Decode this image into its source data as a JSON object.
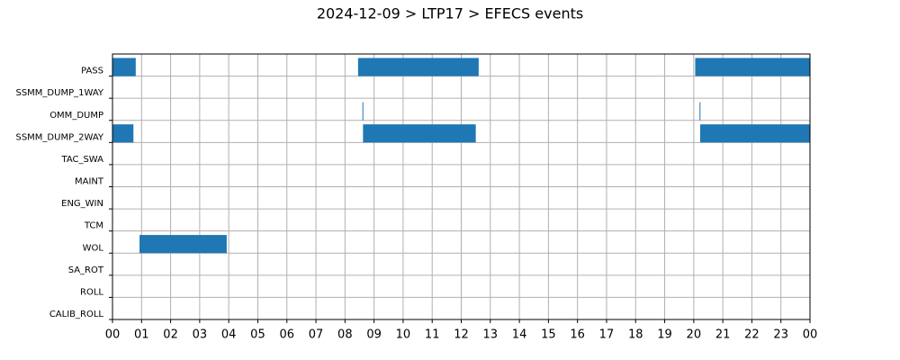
{
  "chart_data": {
    "type": "timeline",
    "title": "2024-12-09 > LTP17 > EFECS events",
    "categories": [
      "PASS",
      "SSMM_DUMP_1WAY",
      "OMM_DUMP",
      "SSMM_DUMP_2WAY",
      "TAC_SWA",
      "MAINT",
      "ENG_WIN",
      "TCM",
      "WOL",
      "SA_ROT",
      "ROLL",
      "CALIB_ROLL"
    ],
    "events": [
      {
        "category": "PASS",
        "start": 0,
        "end": 0.8
      },
      {
        "category": "PASS",
        "start": 8.45,
        "end": 12.6
      },
      {
        "category": "PASS",
        "start": 20.05,
        "end": 24
      },
      {
        "category": "OMM_DUMP",
        "start": 8.6,
        "end": 8.63
      },
      {
        "category": "OMM_DUMP",
        "start": 20.2,
        "end": 20.23
      },
      {
        "category": "SSMM_DUMP_2WAY",
        "start": 0,
        "end": 0.72
      },
      {
        "category": "SSMM_DUMP_2WAY",
        "start": 8.62,
        "end": 12.5
      },
      {
        "category": "SSMM_DUMP_2WAY",
        "start": 20.22,
        "end": 24
      },
      {
        "category": "WOL",
        "start": 0.93,
        "end": 3.93
      }
    ],
    "color": "#1f77b4",
    "xlim": [
      0,
      24
    ],
    "xticks": [
      {
        "value": 0,
        "label": "00"
      },
      {
        "value": 1,
        "label": "01"
      },
      {
        "value": 2,
        "label": "02"
      },
      {
        "value": 3,
        "label": "03"
      },
      {
        "value": 4,
        "label": "04"
      },
      {
        "value": 5,
        "label": "05"
      },
      {
        "value": 6,
        "label": "06"
      },
      {
        "value": 7,
        "label": "07"
      },
      {
        "value": 8,
        "label": "08"
      },
      {
        "value": 9,
        "label": "09"
      },
      10,
      11,
      12,
      13,
      14,
      15,
      16,
      17,
      18,
      19,
      20,
      21,
      22,
      23,
      {
        "value": 24,
        "label": "00"
      }
    ],
    "grid": true
  }
}
